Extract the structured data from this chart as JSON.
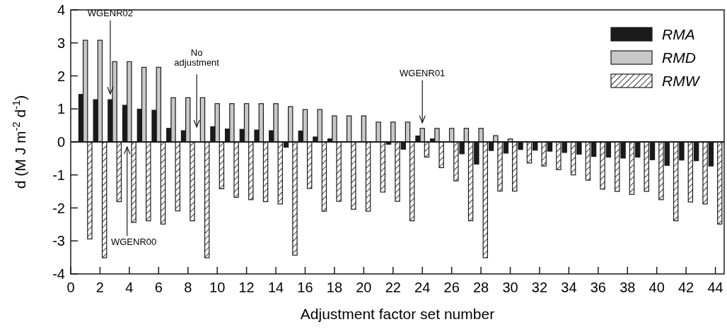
{
  "chart_data": {
    "type": "bar",
    "xlabel": "Adjustment factor set number",
    "ylabel": "d (M J m$^{-2}$ d$^{-1}$)",
    "x": [
      1,
      2,
      3,
      4,
      5,
      6,
      7,
      8,
      9,
      10,
      11,
      12,
      13,
      14,
      15,
      16,
      17,
      18,
      19,
      20,
      21,
      22,
      23,
      24,
      25,
      26,
      27,
      28,
      29,
      30,
      31,
      32,
      33,
      34,
      35,
      36,
      37,
      38,
      39,
      40,
      41,
      42,
      43,
      44
    ],
    "series": [
      {
        "name": "RMA",
        "color": "#1a1a1a",
        "values": [
          1.44,
          1.28,
          1.28,
          1.11,
          0.99,
          0.96,
          0.41,
          0.34,
          null,
          0.46,
          0.39,
          0.38,
          0.36,
          0.34,
          -0.16,
          0.33,
          0.15,
          0.09,
          null,
          null,
          null,
          -0.07,
          -0.22,
          0.18,
          0.09,
          null,
          -0.36,
          -0.67,
          -0.26,
          -0.34,
          -0.23,
          -0.25,
          -0.28,
          -0.32,
          -0.37,
          -0.44,
          -0.46,
          -0.49,
          -0.46,
          -0.54,
          -0.71,
          -0.55,
          -0.57,
          -0.73
        ]
      },
      {
        "name": "RMD",
        "color": "#c8c8c8",
        "values": [
          3.08,
          3.08,
          2.43,
          2.43,
          2.26,
          2.26,
          1.34,
          1.34,
          1.34,
          1.16,
          1.16,
          1.16,
          1.16,
          1.16,
          1.07,
          0.98,
          0.98,
          0.79,
          0.79,
          0.79,
          0.6,
          0.6,
          0.6,
          0.41,
          0.41,
          0.41,
          0.41,
          0.41,
          0.19,
          0.09,
          0,
          0,
          0,
          0,
          0,
          0,
          0,
          0,
          0,
          0,
          0,
          0,
          0,
          0
        ]
      },
      {
        "name": "RMW",
        "color": "#222222",
        "values": [
          -2.94,
          -3.51,
          -1.81,
          -2.44,
          -2.39,
          -2.49,
          -2.09,
          -2.39,
          -3.51,
          -1.42,
          -1.68,
          -1.75,
          -1.81,
          -1.88,
          -3.43,
          -1.41,
          -2.1,
          -1.8,
          -2.04,
          -2.1,
          -1.52,
          -1.8,
          -2.39,
          -0.46,
          -0.78,
          -1.18,
          -2.39,
          -3.51,
          -1.49,
          -1.49,
          -0.64,
          -0.73,
          -0.84,
          -1.0,
          -1.16,
          -1.43,
          -1.5,
          -1.59,
          -1.5,
          -1.75,
          -2.39,
          -1.82,
          -1.88,
          -2.49
        ]
      }
    ],
    "xlim": [
      0,
      44.6
    ],
    "xticks": [
      0,
      2,
      4,
      6,
      8,
      10,
      12,
      14,
      16,
      18,
      20,
      22,
      24,
      26,
      28,
      30,
      32,
      34,
      36,
      38,
      40,
      42,
      44
    ],
    "ylim": [
      -4,
      4
    ],
    "yticks": [
      -4,
      -3,
      -2,
      -1,
      0,
      1,
      2,
      3,
      4
    ],
    "legend": "top right",
    "ref_lines": [
      {
        "axis": "y",
        "value": 0
      }
    ],
    "annotations": [
      {
        "text": "WGENR02",
        "x": 2.7,
        "y": 1.28
      },
      "WGENR00",
      "No adjustment",
      {
        "text": "WGENR01",
        "x": 24,
        "y": 0.41
      }
    ]
  }
}
